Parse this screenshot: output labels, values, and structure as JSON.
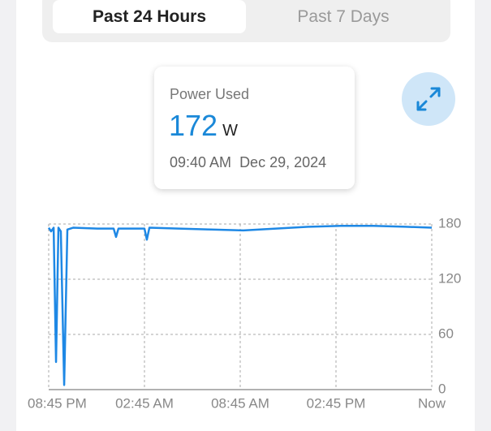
{
  "tabs": [
    {
      "label": "Past 24 Hours",
      "active": true
    },
    {
      "label": "Past 7 Days",
      "active": false
    }
  ],
  "card": {
    "title": "Power Used",
    "value": 172,
    "unit": "W",
    "time": "09:40 AM",
    "date": "Dec 29, 2024"
  },
  "chart_data": {
    "type": "line",
    "x": [
      0,
      0.15,
      0.31,
      0.46,
      0.61,
      0.76,
      0.97,
      1.17,
      1.53,
      3.05,
      4.07,
      4.22,
      4.37,
      6.0,
      6.15,
      6.31,
      8.14,
      10.17,
      12.2,
      14.24,
      16.27,
      18.31,
      20.34,
      22.37,
      24
    ],
    "series": [
      {
        "color": "#1e88e5",
        "values": [
          176,
          172,
          176,
          30,
          176,
          172,
          5,
          174,
          176,
          175,
          175,
          166,
          175,
          175,
          163,
          176,
          175,
          174,
          173,
          175,
          177,
          178,
          178,
          177,
          176
        ]
      }
    ],
    "xlim": [
      0,
      24
    ],
    "xticks": [
      {
        "value": 0,
        "label": "08:45 PM"
      },
      {
        "value": 6,
        "label": "02:45 AM"
      },
      {
        "value": 12,
        "label": "08:45 AM"
      },
      {
        "value": 18,
        "label": "02:45 PM"
      },
      {
        "value": 24,
        "label": "Now"
      }
    ],
    "ylim": [
      0,
      180
    ],
    "yticks": [
      0,
      60,
      120,
      180
    ],
    "grid": true
  }
}
